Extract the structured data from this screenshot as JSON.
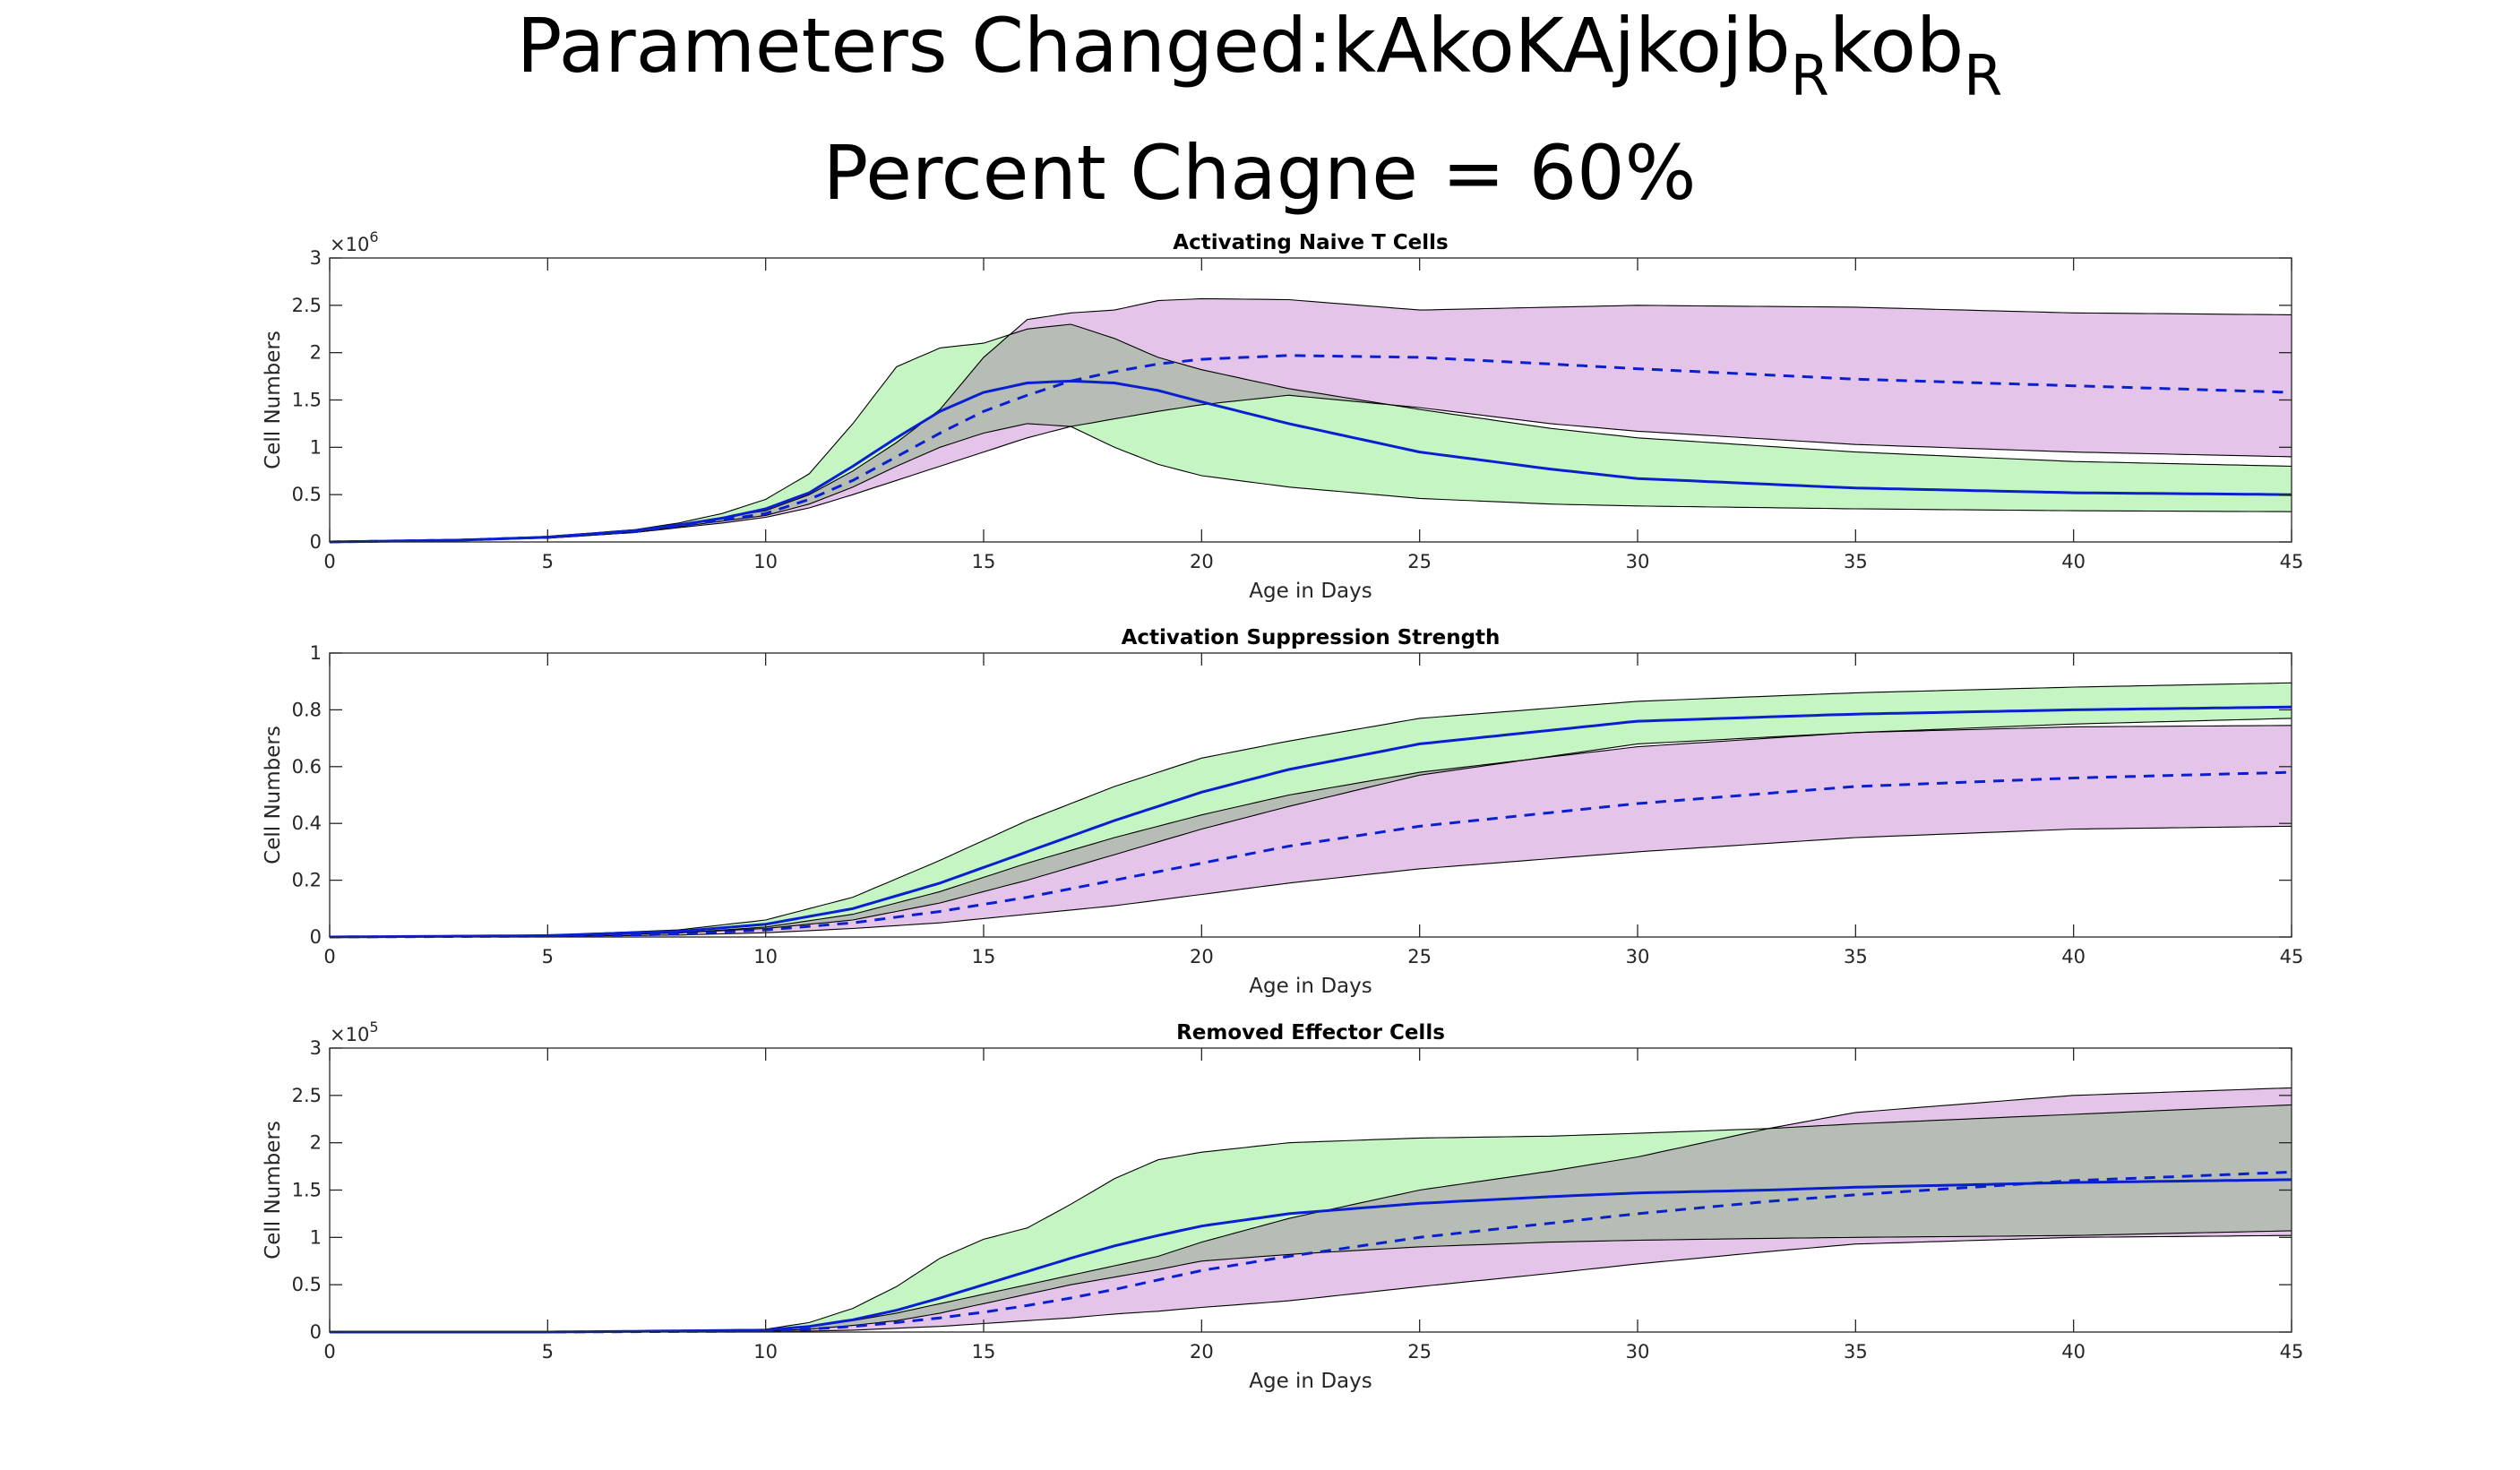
{
  "figure": {
    "title_prefix": "Parameters Changed:",
    "title_parts": [
      "kAkoKAjkojb",
      "R",
      "kob",
      "R"
    ],
    "subtitle": "Percent Chagne = 60%"
  },
  "colors": {
    "green_band": "#c4f5c3",
    "purple_band": "#e4c4e8",
    "overlap_band": "#b6bdb5",
    "line": "#0a20d0",
    "axis": "#262626"
  },
  "chart_data": [
    {
      "type": "line",
      "title": "Activating Naive T Cells",
      "xlabel": "Age in Days",
      "ylabel": "Cell Numbers",
      "exponent_label": "×10",
      "exponent": "6",
      "xlim": [
        0,
        45
      ],
      "ylim": [
        0,
        3
      ],
      "xticks": [
        "0",
        "5",
        "10",
        "15",
        "20",
        "25",
        "30",
        "35",
        "40",
        "45"
      ],
      "yticks": [
        "0",
        "0.5",
        "1",
        "1.5",
        "2",
        "2.5",
        "3"
      ],
      "x": [
        0,
        3,
        5,
        7,
        8,
        9,
        10,
        11,
        12,
        13,
        14,
        15,
        16,
        17,
        18,
        19,
        20,
        22,
        25,
        28,
        30,
        35,
        40,
        45
      ],
      "series": [
        {
          "style": "solid",
          "values": [
            0,
            0.02,
            0.05,
            0.12,
            0.18,
            0.25,
            0.35,
            0.52,
            0.8,
            1.1,
            1.38,
            1.58,
            1.68,
            1.7,
            1.68,
            1.6,
            1.48,
            1.25,
            0.95,
            0.77,
            0.67,
            0.57,
            0.52,
            0.5
          ]
        },
        {
          "style": "dashed",
          "values": [
            0,
            0.02,
            0.05,
            0.11,
            0.17,
            0.23,
            0.3,
            0.45,
            0.65,
            0.9,
            1.15,
            1.38,
            1.55,
            1.7,
            1.8,
            1.88,
            1.93,
            1.97,
            1.95,
            1.88,
            1.83,
            1.72,
            1.65,
            1.58
          ]
        }
      ],
      "bands": [
        {
          "fill": "green",
          "lower": [
            0,
            0.02,
            0.04,
            0.1,
            0.16,
            0.22,
            0.28,
            0.4,
            0.58,
            0.8,
            1.0,
            1.15,
            1.25,
            1.22,
            1.0,
            0.82,
            0.7,
            0.58,
            0.46,
            0.4,
            0.38,
            0.35,
            0.33,
            0.32
          ],
          "upper": [
            0,
            0.02,
            0.06,
            0.13,
            0.2,
            0.3,
            0.45,
            0.72,
            1.25,
            1.85,
            2.05,
            2.1,
            2.25,
            2.3,
            2.15,
            1.95,
            1.82,
            1.62,
            1.4,
            1.2,
            1.1,
            0.95,
            0.85,
            0.8
          ]
        },
        {
          "fill": "purple",
          "lower": [
            0,
            0.02,
            0.04,
            0.1,
            0.15,
            0.2,
            0.26,
            0.36,
            0.5,
            0.65,
            0.8,
            0.95,
            1.1,
            1.22,
            1.3,
            1.38,
            1.45,
            1.55,
            1.42,
            1.25,
            1.17,
            1.03,
            0.95,
            0.9
          ],
          "upper": [
            0,
            0.02,
            0.05,
            0.12,
            0.18,
            0.26,
            0.33,
            0.5,
            0.75,
            1.05,
            1.4,
            1.95,
            2.35,
            2.42,
            2.45,
            2.55,
            2.57,
            2.56,
            2.45,
            2.48,
            2.5,
            2.48,
            2.42,
            2.4
          ]
        }
      ]
    },
    {
      "type": "line",
      "title": "Activation Suppression Strength",
      "xlabel": "Age in Days",
      "ylabel": "Cell Numbers",
      "xlim": [
        0,
        45
      ],
      "ylim": [
        0,
        1
      ],
      "xticks": [
        "0",
        "5",
        "10",
        "15",
        "20",
        "25",
        "30",
        "35",
        "40",
        "45"
      ],
      "yticks": [
        "0",
        "0.2",
        "0.4",
        "0.6",
        "0.8",
        "1"
      ],
      "x": [
        0,
        5,
        8,
        10,
        12,
        14,
        16,
        18,
        20,
        22,
        25,
        30,
        35,
        40,
        45
      ],
      "series": [
        {
          "style": "solid",
          "values": [
            0,
            0.005,
            0.02,
            0.045,
            0.1,
            0.19,
            0.3,
            0.41,
            0.51,
            0.59,
            0.68,
            0.76,
            0.785,
            0.8,
            0.81
          ]
        },
        {
          "style": "dashed",
          "values": [
            0,
            0.003,
            0.01,
            0.025,
            0.05,
            0.09,
            0.14,
            0.2,
            0.26,
            0.32,
            0.39,
            0.47,
            0.53,
            0.56,
            0.58
          ]
        }
      ],
      "bands": [
        {
          "fill": "green",
          "lower": [
            0,
            0.004,
            0.015,
            0.03,
            0.06,
            0.12,
            0.2,
            0.29,
            0.38,
            0.46,
            0.57,
            0.68,
            0.72,
            0.75,
            0.77
          ],
          "upper": [
            0,
            0.006,
            0.025,
            0.06,
            0.14,
            0.27,
            0.41,
            0.53,
            0.63,
            0.69,
            0.77,
            0.83,
            0.86,
            0.88,
            0.895
          ]
        },
        {
          "fill": "purple",
          "lower": [
            0,
            0.002,
            0.007,
            0.015,
            0.03,
            0.05,
            0.08,
            0.11,
            0.15,
            0.19,
            0.24,
            0.3,
            0.35,
            0.38,
            0.39
          ],
          "upper": [
            0,
            0.004,
            0.014,
            0.035,
            0.08,
            0.16,
            0.26,
            0.35,
            0.43,
            0.5,
            0.58,
            0.67,
            0.72,
            0.74,
            0.745
          ]
        }
      ]
    },
    {
      "type": "line",
      "title": "Removed Effector Cells",
      "xlabel": "Age in Days",
      "ylabel": "Cell Numbers",
      "exponent_label": "×10",
      "exponent": "5",
      "xlim": [
        0,
        45
      ],
      "ylim": [
        0,
        3
      ],
      "xticks": [
        "0",
        "5",
        "10",
        "15",
        "20",
        "25",
        "30",
        "35",
        "40",
        "45"
      ],
      "yticks": [
        "0",
        "0.5",
        "1",
        "1.5",
        "2",
        "2.5",
        "3"
      ],
      "x": [
        0,
        5,
        10,
        11,
        12,
        13,
        14,
        15,
        16,
        17,
        18,
        19,
        20,
        22,
        25,
        28,
        30,
        33,
        35,
        40,
        45
      ],
      "series": [
        {
          "style": "solid",
          "values": [
            0,
            0,
            0.02,
            0.06,
            0.13,
            0.23,
            0.36,
            0.5,
            0.64,
            0.78,
            0.91,
            1.02,
            1.12,
            1.25,
            1.36,
            1.43,
            1.47,
            1.5,
            1.53,
            1.58,
            1.61
          ]
        },
        {
          "style": "dashed",
          "values": [
            0,
            0,
            0.01,
            0.03,
            0.06,
            0.1,
            0.15,
            0.21,
            0.28,
            0.36,
            0.45,
            0.55,
            0.65,
            0.8,
            1.0,
            1.15,
            1.25,
            1.38,
            1.45,
            1.6,
            1.69
          ]
        }
      ],
      "bands": [
        {
          "fill": "green",
          "lower": [
            0,
            0,
            0.01,
            0.03,
            0.07,
            0.12,
            0.2,
            0.3,
            0.4,
            0.5,
            0.58,
            0.66,
            0.75,
            0.82,
            0.9,
            0.95,
            0.97,
            0.99,
            1.0,
            1.02,
            1.07
          ],
          "upper": [
            0,
            0,
            0.03,
            0.1,
            0.25,
            0.48,
            0.78,
            0.98,
            1.1,
            1.35,
            1.62,
            1.82,
            1.9,
            2.0,
            2.05,
            2.07,
            2.1,
            2.15,
            2.2,
            2.3,
            2.4
          ]
        },
        {
          "fill": "purple",
          "lower": [
            0,
            0,
            0.005,
            0.01,
            0.02,
            0.04,
            0.06,
            0.09,
            0.12,
            0.15,
            0.19,
            0.22,
            0.26,
            0.33,
            0.48,
            0.62,
            0.72,
            0.85,
            0.93,
            1.0,
            1.02
          ],
          "upper": [
            0,
            0,
            0.02,
            0.06,
            0.12,
            0.2,
            0.3,
            0.4,
            0.5,
            0.6,
            0.7,
            0.8,
            0.95,
            1.2,
            1.5,
            1.7,
            1.85,
            2.15,
            2.32,
            2.5,
            2.58
          ]
        }
      ]
    }
  ]
}
